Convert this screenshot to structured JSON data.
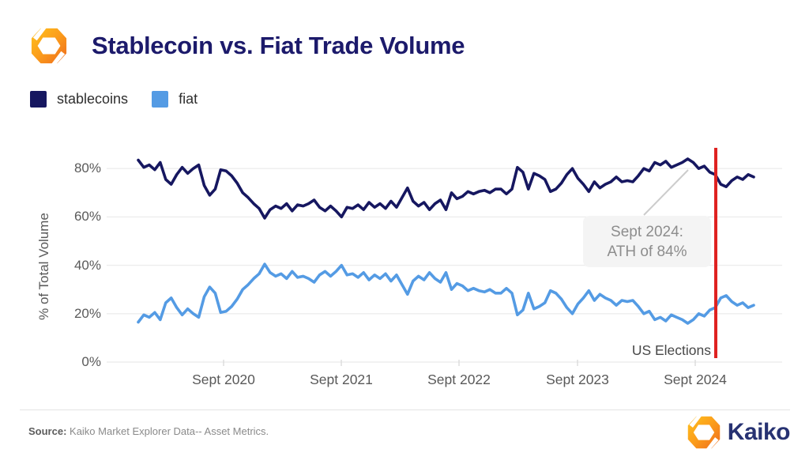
{
  "header": {
    "title": "Stablecoin vs. Fiat Trade Volume"
  },
  "legend": [
    {
      "label": "stablecoins",
      "color": "#161760"
    },
    {
      "label": "fiat",
      "color": "#549be4"
    }
  ],
  "chart_data": {
    "type": "line",
    "title": "Stablecoin vs. Fiat Trade Volume",
    "ylabel": "% of Total Volume",
    "ylim": [
      0,
      90
    ],
    "grid": true,
    "legend_position": "top-left",
    "yticks": [
      0,
      20,
      40,
      60,
      80
    ],
    "ytick_labels": [
      "0%",
      "20%",
      "40%",
      "60%",
      "80%"
    ],
    "xtick_labels": [
      "Sept 2020",
      "Sept 2021",
      "Sept 2022",
      "Sept 2023",
      "Sept 2024"
    ],
    "x_range_note": "evenly spaced samples from ~Dec 2019 to ~Feb 2025 (share of total trade volume, %)",
    "series": [
      {
        "name": "stablecoins",
        "color": "#161760",
        "values": [
          83.5,
          80.5,
          81.5,
          79.5,
          82.5,
          75.5,
          73.5,
          77.5,
          80.5,
          78.0,
          80.0,
          81.5,
          73.0,
          69.0,
          71.5,
          79.5,
          79.0,
          77.0,
          74.0,
          70.0,
          68.0,
          65.5,
          63.5,
          59.5,
          63.0,
          64.5,
          63.5,
          65.5,
          62.5,
          65.0,
          64.5,
          65.5,
          67.0,
          64.0,
          62.5,
          64.5,
          62.5,
          60.0,
          64.0,
          63.5,
          65.0,
          63.0,
          66.0,
          64.0,
          65.5,
          63.5,
          66.5,
          64.0,
          68.0,
          72.0,
          66.5,
          64.5,
          66.0,
          63.0,
          65.5,
          67.0,
          63.0,
          70.0,
          67.5,
          68.5,
          70.5,
          69.5,
          70.5,
          71.0,
          70.0,
          71.5,
          71.5,
          69.5,
          71.5,
          80.5,
          78.5,
          71.5,
          78.0,
          77.0,
          75.5,
          70.5,
          71.5,
          74.0,
          77.5,
          80.0,
          76.0,
          73.5,
          70.5,
          74.5,
          72.0,
          73.5,
          74.5,
          76.5,
          74.5,
          75.0,
          74.5,
          77.0,
          80.0,
          79.0,
          82.5,
          81.5,
          83.0,
          80.5,
          81.5,
          82.5,
          84.0,
          82.5,
          80.0,
          81.0,
          78.5,
          77.5,
          73.5,
          72.5,
          75.0,
          76.5,
          75.5,
          77.5,
          76.5
        ]
      },
      {
        "name": "fiat",
        "color": "#549be4",
        "values": [
          16.5,
          19.5,
          18.5,
          20.5,
          17.5,
          24.5,
          26.5,
          22.5,
          19.5,
          22.0,
          20.0,
          18.5,
          27.0,
          31.0,
          28.5,
          20.5,
          21.0,
          23.0,
          26.0,
          30.0,
          32.0,
          34.5,
          36.5,
          40.5,
          37.0,
          35.5,
          36.5,
          34.5,
          37.5,
          35.0,
          35.5,
          34.5,
          33.0,
          36.0,
          37.5,
          35.5,
          37.5,
          40.0,
          36.0,
          36.5,
          35.0,
          37.0,
          34.0,
          36.0,
          34.5,
          36.5,
          33.5,
          36.0,
          32.0,
          28.0,
          33.5,
          35.5,
          34.0,
          37.0,
          34.5,
          33.0,
          37.0,
          30.0,
          32.5,
          31.5,
          29.5,
          30.5,
          29.5,
          29.0,
          30.0,
          28.5,
          28.5,
          30.5,
          28.5,
          19.5,
          21.5,
          28.5,
          22.0,
          23.0,
          24.5,
          29.5,
          28.5,
          26.0,
          22.5,
          20.0,
          24.0,
          26.5,
          29.5,
          25.5,
          28.0,
          26.5,
          25.5,
          23.5,
          25.5,
          25.0,
          25.5,
          23.0,
          20.0,
          21.0,
          17.5,
          18.5,
          17.0,
          19.5,
          18.5,
          17.5,
          16.0,
          17.5,
          20.0,
          19.0,
          21.5,
          22.5,
          26.5,
          27.5,
          25.0,
          23.5,
          24.5,
          22.5,
          23.5
        ]
      }
    ],
    "annotation": {
      "line1": "Sept 2024:",
      "line2": "ATH of 84%"
    },
    "event_line": {
      "label": "US Elections",
      "color": "#df2221",
      "x_label": "Nov 2024"
    }
  },
  "footer": {
    "source_label": "Source:",
    "source_text": " Kaiko Market Explorer Data-- Asset Metrics.",
    "brand": "Kaiko"
  }
}
